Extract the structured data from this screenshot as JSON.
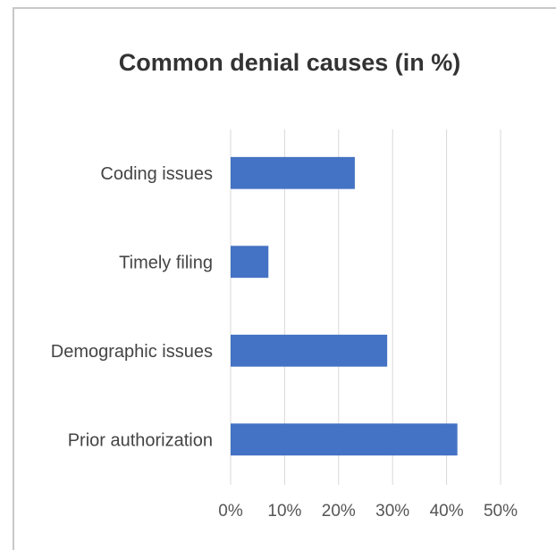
{
  "chart_data": {
    "type": "bar",
    "orientation": "horizontal",
    "title": "Common denial causes (in %)",
    "categories": [
      "Coding issues",
      "Timely filing",
      "Demographic issues",
      "Prior authorization"
    ],
    "values": [
      23,
      7,
      29,
      42
    ],
    "xlim": [
      0,
      50
    ],
    "x_ticks": [
      0,
      10,
      20,
      30,
      40,
      50
    ],
    "x_tick_labels": [
      "0%",
      "10%",
      "20%",
      "30%",
      "40%",
      "50%"
    ],
    "xlabel": "",
    "ylabel": "",
    "grid": "vertical",
    "legend": "none",
    "bar_color": "#4472c4",
    "grid_color": "#d9d9d9"
  }
}
